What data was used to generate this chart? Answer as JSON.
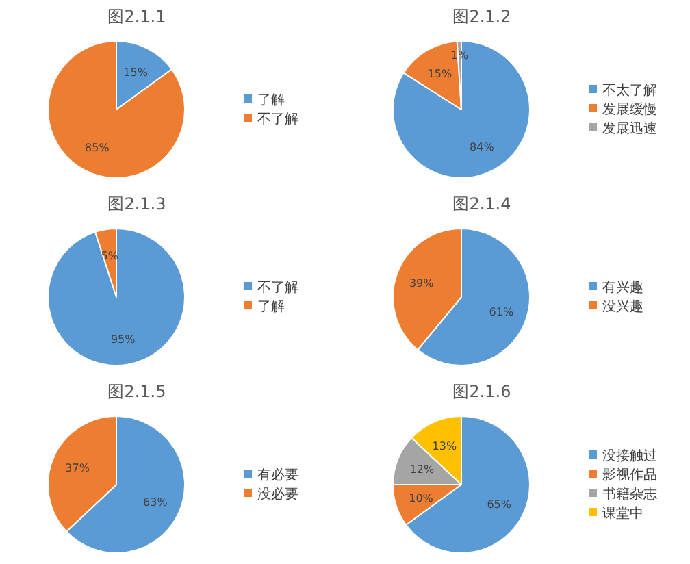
{
  "chart_data": [
    {
      "type": "pie",
      "title": "图2.1.1",
      "categories": [
        "了解",
        "不了解"
      ],
      "values": [
        15,
        85
      ],
      "colors": [
        "#5b9bd5",
        "#ed7d31"
      ],
      "value_labels": [
        "15%",
        "85%"
      ],
      "legend": "right"
    },
    {
      "type": "pie",
      "title": "图2.1.2",
      "categories": [
        "不太了解",
        "发展缓慢",
        "发展迅速"
      ],
      "values": [
        84,
        15,
        1
      ],
      "colors": [
        "#5b9bd5",
        "#ed7d31",
        "#a5a5a5"
      ],
      "value_labels": [
        "84%",
        "15%",
        "1%"
      ],
      "legend": "right"
    },
    {
      "type": "pie",
      "title": "图2.1.3",
      "categories": [
        "不了解",
        "了解"
      ],
      "values": [
        95,
        5
      ],
      "colors": [
        "#5b9bd5",
        "#ed7d31"
      ],
      "value_labels": [
        "95%",
        "5%"
      ],
      "legend": "right"
    },
    {
      "type": "pie",
      "title": "图2.1.4",
      "categories": [
        "有兴趣",
        "没兴趣"
      ],
      "values": [
        61,
        39
      ],
      "colors": [
        "#5b9bd5",
        "#ed7d31"
      ],
      "value_labels": [
        "61%",
        "39%"
      ],
      "legend": "right"
    },
    {
      "type": "pie",
      "title": "图2.1.5",
      "categories": [
        "有必要",
        "没必要"
      ],
      "values": [
        63,
        37
      ],
      "colors": [
        "#5b9bd5",
        "#ed7d31"
      ],
      "value_labels": [
        "63%",
        "37%"
      ],
      "legend": "right"
    },
    {
      "type": "pie",
      "title": "图2.1.6",
      "categories": [
        "没接触过",
        "影视作品",
        "书籍杂志",
        "课堂中"
      ],
      "values": [
        65,
        10,
        12,
        13
      ],
      "colors": [
        "#5b9bd5",
        "#ed7d31",
        "#a5a5a5",
        "#ffc000"
      ],
      "value_labels": [
        "65%",
        "10%",
        "12%",
        "13%"
      ],
      "legend": "right"
    }
  ]
}
